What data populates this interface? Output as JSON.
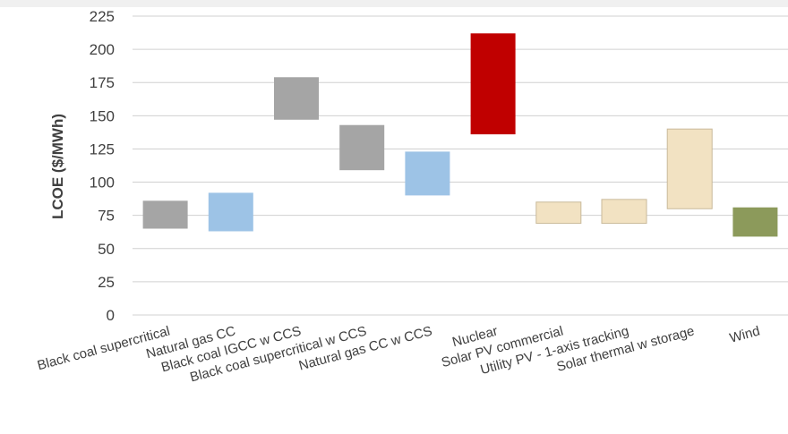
{
  "chart_data": {
    "type": "bar",
    "subtype": "floating-range",
    "title": "",
    "xlabel": "",
    "ylabel": "LCOE ($/MWh)",
    "ylim": [
      0,
      225
    ],
    "yticks": [
      0,
      25,
      50,
      75,
      100,
      125,
      150,
      175,
      200,
      225
    ],
    "grid": true,
    "legend": "none",
    "categories": [
      "Black coal supercritical",
      "Natural gas CC",
      "Black coal IGCC w CCS",
      "Black coal supercritical w CCS",
      "Natural gas CC w CCS",
      "Nuclear",
      "Solar PV commercial",
      "Utility PV - 1-axis tracking",
      "Solar thermal w storage",
      "Wind"
    ],
    "series": [
      {
        "low": [
          65,
          63,
          147,
          109,
          90,
          136,
          69,
          69,
          80,
          59
        ],
        "high": [
          86,
          92,
          179,
          143,
          123,
          212,
          85,
          87,
          140,
          81
        ]
      }
    ],
    "colors": [
      "#a5a5a5",
      "#9dc3e6",
      "#a5a5a5",
      "#a5a5a5",
      "#9dc3e6",
      "#c00000",
      "#f2e2c2",
      "#f2e2c2",
      "#f2e2c2",
      "#8c9a5b"
    ],
    "outlines": [
      "none",
      "none",
      "none",
      "none",
      "none",
      "none",
      "#c9b99a",
      "#c9b99a",
      "#c9b99a",
      "none"
    ]
  }
}
